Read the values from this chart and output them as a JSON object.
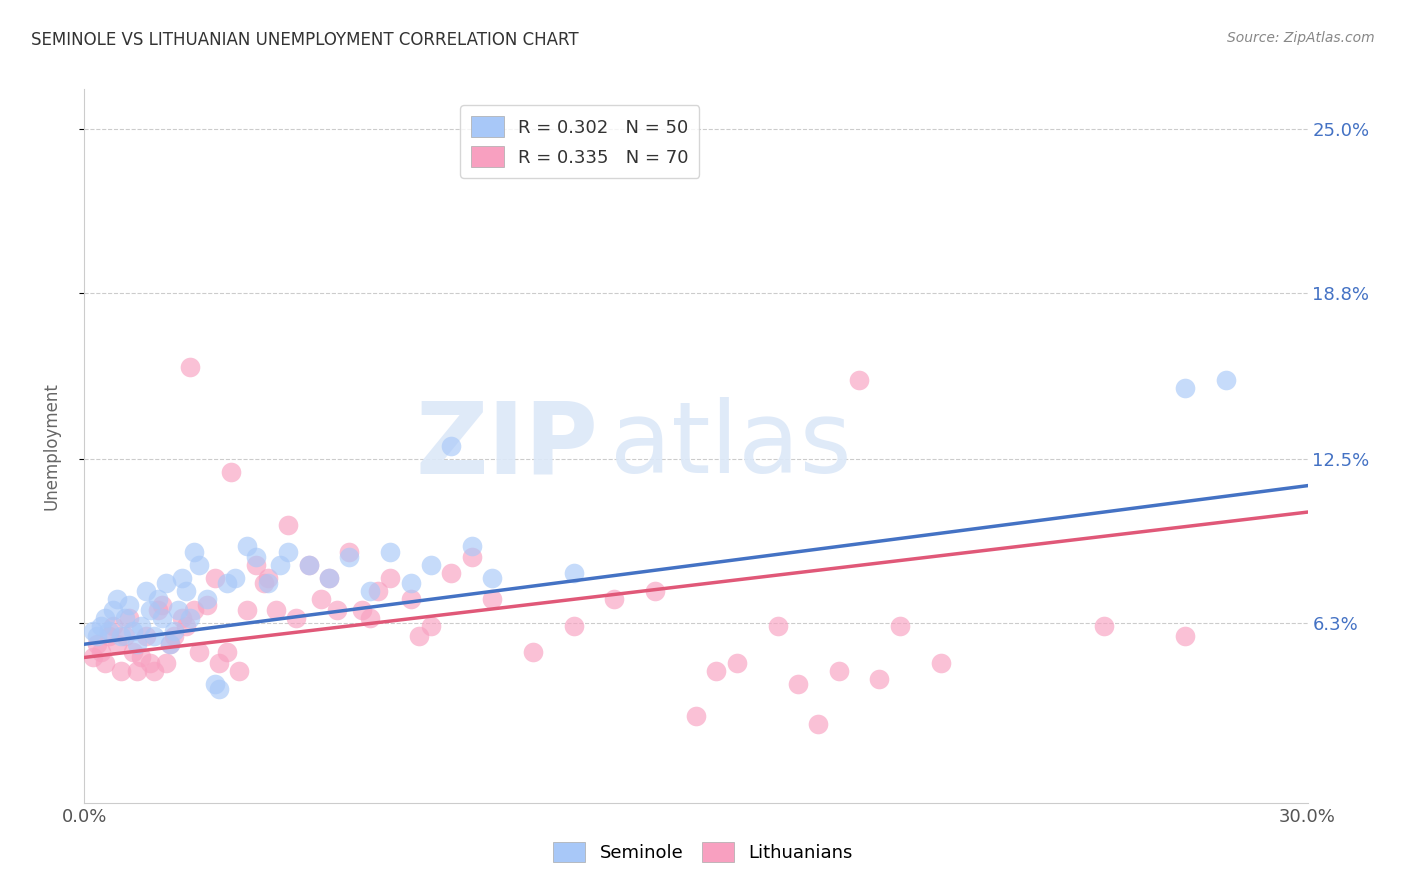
{
  "title": "SEMINOLE VS LITHUANIAN UNEMPLOYMENT CORRELATION CHART",
  "source": "Source: ZipAtlas.com",
  "ylabel": "Unemployment",
  "xlim": [
    0.0,
    0.3
  ],
  "ylim": [
    -0.005,
    0.265
  ],
  "yticks": [
    0.063,
    0.125,
    0.188,
    0.25
  ],
  "ytick_labels": [
    "6.3%",
    "12.5%",
    "18.8%",
    "25.0%"
  ],
  "xticks": [
    0.0,
    0.05,
    0.1,
    0.15,
    0.2,
    0.25,
    0.3
  ],
  "xtick_labels": [
    "0.0%",
    "",
    "",
    "",
    "",
    "",
    "30.0%"
  ],
  "watermark_zip": "ZIP",
  "watermark_atlas": "atlas",
  "blue_color": "#A8C8F8",
  "pink_color": "#F8A0C0",
  "blue_line_color": "#4472C4",
  "pink_line_color": "#E05878",
  "seminole_points": [
    [
      0.002,
      0.06
    ],
    [
      0.003,
      0.058
    ],
    [
      0.004,
      0.062
    ],
    [
      0.005,
      0.065
    ],
    [
      0.006,
      0.06
    ],
    [
      0.007,
      0.068
    ],
    [
      0.008,
      0.072
    ],
    [
      0.009,
      0.058
    ],
    [
      0.01,
      0.065
    ],
    [
      0.011,
      0.07
    ],
    [
      0.012,
      0.06
    ],
    [
      0.013,
      0.055
    ],
    [
      0.014,
      0.062
    ],
    [
      0.015,
      0.075
    ],
    [
      0.016,
      0.068
    ],
    [
      0.017,
      0.058
    ],
    [
      0.018,
      0.072
    ],
    [
      0.019,
      0.065
    ],
    [
      0.02,
      0.078
    ],
    [
      0.021,
      0.055
    ],
    [
      0.022,
      0.06
    ],
    [
      0.023,
      0.068
    ],
    [
      0.024,
      0.08
    ],
    [
      0.025,
      0.075
    ],
    [
      0.026,
      0.065
    ],
    [
      0.027,
      0.09
    ],
    [
      0.028,
      0.085
    ],
    [
      0.03,
      0.072
    ],
    [
      0.032,
      0.04
    ],
    [
      0.033,
      0.038
    ],
    [
      0.035,
      0.078
    ],
    [
      0.037,
      0.08
    ],
    [
      0.04,
      0.092
    ],
    [
      0.042,
      0.088
    ],
    [
      0.045,
      0.078
    ],
    [
      0.048,
      0.085
    ],
    [
      0.05,
      0.09
    ],
    [
      0.055,
      0.085
    ],
    [
      0.06,
      0.08
    ],
    [
      0.065,
      0.088
    ],
    [
      0.07,
      0.075
    ],
    [
      0.075,
      0.09
    ],
    [
      0.08,
      0.078
    ],
    [
      0.085,
      0.085
    ],
    [
      0.09,
      0.13
    ],
    [
      0.095,
      0.092
    ],
    [
      0.1,
      0.08
    ],
    [
      0.12,
      0.082
    ],
    [
      0.27,
      0.152
    ],
    [
      0.28,
      0.155
    ]
  ],
  "lithuanian_points": [
    [
      0.002,
      0.05
    ],
    [
      0.003,
      0.055
    ],
    [
      0.004,
      0.052
    ],
    [
      0.005,
      0.048
    ],
    [
      0.006,
      0.058
    ],
    [
      0.007,
      0.062
    ],
    [
      0.008,
      0.055
    ],
    [
      0.009,
      0.045
    ],
    [
      0.01,
      0.058
    ],
    [
      0.011,
      0.065
    ],
    [
      0.012,
      0.052
    ],
    [
      0.013,
      0.045
    ],
    [
      0.014,
      0.05
    ],
    [
      0.015,
      0.058
    ],
    [
      0.016,
      0.048
    ],
    [
      0.017,
      0.045
    ],
    [
      0.018,
      0.068
    ],
    [
      0.019,
      0.07
    ],
    [
      0.02,
      0.048
    ],
    [
      0.021,
      0.055
    ],
    [
      0.022,
      0.058
    ],
    [
      0.024,
      0.065
    ],
    [
      0.025,
      0.062
    ],
    [
      0.026,
      0.16
    ],
    [
      0.027,
      0.068
    ],
    [
      0.028,
      0.052
    ],
    [
      0.03,
      0.07
    ],
    [
      0.032,
      0.08
    ],
    [
      0.033,
      0.048
    ],
    [
      0.035,
      0.052
    ],
    [
      0.036,
      0.12
    ],
    [
      0.038,
      0.045
    ],
    [
      0.04,
      0.068
    ],
    [
      0.042,
      0.085
    ],
    [
      0.044,
      0.078
    ],
    [
      0.045,
      0.08
    ],
    [
      0.047,
      0.068
    ],
    [
      0.05,
      0.1
    ],
    [
      0.052,
      0.065
    ],
    [
      0.055,
      0.085
    ],
    [
      0.058,
      0.072
    ],
    [
      0.06,
      0.08
    ],
    [
      0.062,
      0.068
    ],
    [
      0.065,
      0.09
    ],
    [
      0.068,
      0.068
    ],
    [
      0.07,
      0.065
    ],
    [
      0.072,
      0.075
    ],
    [
      0.075,
      0.08
    ],
    [
      0.08,
      0.072
    ],
    [
      0.082,
      0.058
    ],
    [
      0.085,
      0.062
    ],
    [
      0.09,
      0.082
    ],
    [
      0.095,
      0.088
    ],
    [
      0.1,
      0.072
    ],
    [
      0.11,
      0.052
    ],
    [
      0.12,
      0.062
    ],
    [
      0.13,
      0.072
    ],
    [
      0.14,
      0.075
    ],
    [
      0.15,
      0.028
    ],
    [
      0.155,
      0.045
    ],
    [
      0.16,
      0.048
    ],
    [
      0.17,
      0.062
    ],
    [
      0.175,
      0.04
    ],
    [
      0.18,
      0.025
    ],
    [
      0.185,
      0.045
    ],
    [
      0.19,
      0.155
    ],
    [
      0.195,
      0.042
    ],
    [
      0.2,
      0.062
    ],
    [
      0.21,
      0.048
    ],
    [
      0.25,
      0.062
    ],
    [
      0.27,
      0.058
    ]
  ],
  "blue_line_x": [
    0.0,
    0.3
  ],
  "blue_line_y": [
    0.055,
    0.115
  ],
  "pink_line_x": [
    0.0,
    0.3
  ],
  "pink_line_y": [
    0.05,
    0.105
  ]
}
